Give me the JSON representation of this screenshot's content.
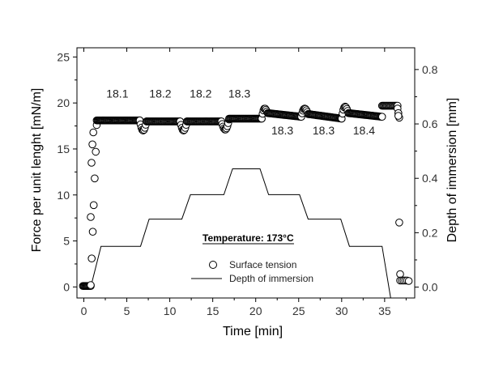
{
  "chart_data": {
    "type": "scatter",
    "xlabel": "Time [min]",
    "ylabel": "Force per unit lenght [mN/m]",
    "ylabel_right": "Depth of immersion [mm]",
    "xlim": [
      -0.8,
      38.5
    ],
    "ylim": [
      -1.2,
      26.0
    ],
    "ylim_right": [
      -0.04,
      0.88
    ],
    "x_ticks": [
      0,
      5,
      10,
      15,
      20,
      25,
      30,
      35
    ],
    "y_ticks": [
      0,
      5,
      10,
      15,
      20,
      25
    ],
    "y_right_ticks": [
      0.0,
      0.2,
      0.4,
      0.6,
      0.8
    ],
    "y_right_tick_labels": [
      "0.0",
      "0.2",
      "0.4",
      "0.6",
      "0.8"
    ],
    "grid": false,
    "legend_position": "lower-center",
    "legend": [
      {
        "label": "Surface tension",
        "marker": "circle"
      },
      {
        "label": "Depth of immersion",
        "marker": "line"
      }
    ],
    "temperature_note": "Temperature: 173°C",
    "annotations": [
      {
        "text": "18.1",
        "x": 3.9,
        "y": 20.6
      },
      {
        "text": "18.2",
        "x": 8.9,
        "y": 20.6
      },
      {
        "text": "18.2",
        "x": 13.6,
        "y": 20.6
      },
      {
        "text": "18.3",
        "x": 18.1,
        "y": 20.6
      },
      {
        "text": "18.3",
        "x": 23.1,
        "y": 16.6
      },
      {
        "text": "18.3",
        "x": 27.9,
        "y": 16.6
      },
      {
        "text": "18.4",
        "x": 32.6,
        "y": 16.6
      }
    ],
    "series": [
      {
        "name": "Surface tension",
        "style": "open-circle",
        "segments": [
          {
            "t0": -0.1,
            "t1": 0.8,
            "y": 0.1,
            "step": 0.1
          },
          {
            "t0": 0.8,
            "t1": 1.5,
            "y_start": 0.2,
            "y_end": 17.6,
            "step": 0.11
          },
          {
            "t0": 1.5,
            "t1": 6.5,
            "y": 18.1,
            "step": 0.1
          },
          {
            "t0": 6.5,
            "t1": 7.3,
            "y_dip": 17.0,
            "y_start": 18.1,
            "y_end": 18.0,
            "step": 0.1
          },
          {
            "t0": 7.3,
            "t1": 11.2,
            "y": 18.0,
            "step": 0.1
          },
          {
            "t0": 11.2,
            "t1": 12.0,
            "y_dip": 17.0,
            "y_start": 18.0,
            "y_end": 18.0,
            "step": 0.1
          },
          {
            "t0": 12.0,
            "t1": 16.0,
            "y": 18.0,
            "step": 0.1
          },
          {
            "t0": 16.0,
            "t1": 16.9,
            "y_dip": 17.1,
            "y_start": 18.0,
            "y_end": 18.2,
            "step": 0.1
          },
          {
            "t0": 16.9,
            "t1": 20.7,
            "y": 18.3,
            "step": 0.1
          },
          {
            "t0": 20.7,
            "t1": 21.4,
            "y_peak": 19.4,
            "y_start": 18.3,
            "y_end": 18.9,
            "step": 0.1
          },
          {
            "t0": 21.4,
            "t1": 25.3,
            "y_start": 18.9,
            "y_end": 18.5,
            "step": 0.1
          },
          {
            "t0": 25.3,
            "t1": 26.1,
            "y_peak": 19.4,
            "y_start": 18.5,
            "y_end": 18.8,
            "step": 0.1
          },
          {
            "t0": 26.1,
            "t1": 30.0,
            "y_start": 18.8,
            "y_end": 18.3,
            "step": 0.1
          },
          {
            "t0": 30.0,
            "t1": 30.8,
            "y_peak": 19.6,
            "y_start": 18.3,
            "y_end": 18.9,
            "step": 0.1
          },
          {
            "t0": 30.8,
            "t1": 34.7,
            "y_start": 18.9,
            "y_end": 18.5,
            "step": 0.1
          },
          {
            "t0": 34.7,
            "t1": 36.5,
            "y": 19.7,
            "step": 0.12
          },
          {
            "t0": 36.5,
            "t1": 36.7,
            "y_start": 19.4,
            "y_end": 18.4,
            "step": 0.1
          }
        ],
        "points": [
          [
            0.8,
            7.6
          ],
          [
            0.9,
            13.5
          ],
          [
            1.0,
            15.5
          ],
          [
            1.1,
            16.8
          ],
          [
            36.6,
            18.6
          ],
          [
            36.7,
            7.0
          ],
          [
            36.8,
            1.4
          ],
          [
            36.8,
            0.7
          ],
          [
            37.0,
            0.7
          ],
          [
            37.2,
            0.7
          ],
          [
            37.4,
            0.7
          ],
          [
            37.6,
            0.7
          ],
          [
            37.8,
            0.65
          ]
        ]
      },
      {
        "name": "Depth of immersion",
        "axis": "right",
        "style": "line",
        "x": [
          -0.2,
          0.8,
          2.0,
          6.6,
          7.6,
          11.4,
          12.4,
          16.3,
          17.3,
          20.5,
          21.5,
          25.1,
          26.1,
          29.9,
          30.9,
          34.7,
          35.7,
          37.0
        ],
        "y": [
          0.0,
          0.0,
          0.15,
          0.15,
          0.25,
          0.25,
          0.34,
          0.34,
          0.435,
          0.435,
          0.34,
          0.34,
          0.25,
          0.25,
          0.15,
          0.15,
          -0.04,
          -0.04
        ]
      }
    ]
  }
}
